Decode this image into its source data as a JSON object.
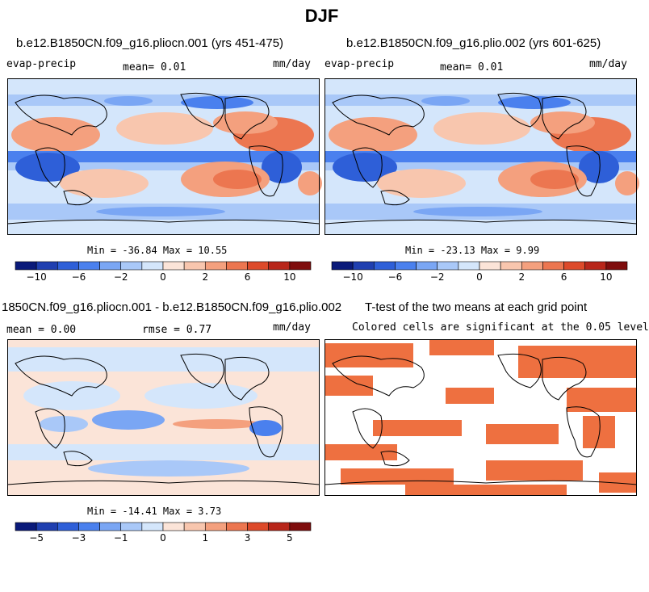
{
  "page": {
    "title": "DJF"
  },
  "panels": [
    {
      "title": "b.e12.B1850CN.f09_g16.pliocn.001 (yrs 451-475)",
      "left_label": "evap-precip",
      "center_label": "mean=    0.01",
      "right_label": "mm/day",
      "minmax": "Min = -36.84  Max =  10.55"
    },
    {
      "title": "b.e12.B1850CN.f09_g16.plio.002 (yrs 601-625)",
      "left_label": "evap-precip",
      "center_label": "mean=    0.01",
      "right_label": "mm/day",
      "minmax": "Min = -23.13  Max =   9.99"
    },
    {
      "title": "1850CN.f09_g16.pliocn.001 - b.e12.B1850CN.f09_g16.plio.002",
      "left_label": "mean =   0.00",
      "center_label": "rmse =   0.77",
      "right_label": "mm/day",
      "minmax": "Min = -14.41  Max =   3.73"
    },
    {
      "title": "T-test of the two means at each grid point",
      "subtitle": "Colored cells are significant at the 0.05 level"
    }
  ],
  "colors": {
    "scale": [
      "#0a1a7a",
      "#1f3fb0",
      "#2e5fd8",
      "#4a80ee",
      "#7aa6f4",
      "#a9c8f8",
      "#d4e6fb",
      "#fbe4d8",
      "#f8c6ae",
      "#f4a07e",
      "#ec7650",
      "#dd4a2a",
      "#b8261a",
      "#7f0d0d"
    ],
    "significance": "#ee7040",
    "land_line": "#000000"
  },
  "chart_data": [
    {
      "type": "heatmap",
      "variable": "evap-precip",
      "units": "mm/day",
      "mean": 0.01,
      "min": -36.84,
      "max": 10.55,
      "colorbar": {
        "levels": [
          -12,
          -10,
          -8,
          -6,
          -4,
          -2,
          -1,
          0,
          1,
          2,
          4,
          6,
          8,
          10,
          12
        ],
        "tick_labels": [
          "-10",
          "-6",
          "-2",
          "0",
          "2",
          "6",
          "10"
        ]
      }
    },
    {
      "type": "heatmap",
      "variable": "evap-precip",
      "units": "mm/day",
      "mean": 0.01,
      "min": -23.13,
      "max": 9.99,
      "colorbar": {
        "levels": [
          -12,
          -10,
          -8,
          -6,
          -4,
          -2,
          -1,
          0,
          1,
          2,
          4,
          6,
          8,
          10,
          12
        ],
        "tick_labels": [
          "-10",
          "-6",
          "-2",
          "0",
          "2",
          "6",
          "10"
        ]
      }
    },
    {
      "type": "heatmap",
      "variable": "difference",
      "units": "mm/day",
      "mean": 0.0,
      "rmse": 0.77,
      "min": -14.41,
      "max": 3.73,
      "colorbar": {
        "levels": [
          -6,
          -5,
          -4,
          -3,
          -2,
          -1,
          -0.5,
          0,
          0.5,
          1,
          2,
          3,
          4,
          5,
          6
        ],
        "tick_labels": [
          "-5",
          "-3",
          "-1",
          "0",
          "1",
          "3",
          "5"
        ]
      }
    },
    {
      "type": "heatmap",
      "variable": "t-test significance",
      "note": "Colored cells are significant at the 0.05 level"
    }
  ]
}
